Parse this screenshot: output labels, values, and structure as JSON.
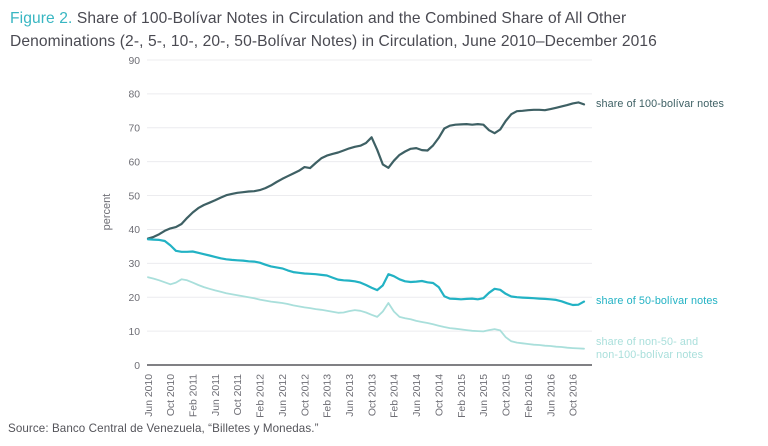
{
  "title": {
    "figure_label": "Figure 2.",
    "line1": " Share of 100-Bolívar Notes in Circulation and the Combined Share of All Other",
    "line2": "Denominations (2-, 5-, 10-, 20-, 50-Bolívar Notes) in Circulation, June 2010–December 2016"
  },
  "source": "Source: Banco Central de Venezuela, “Billetes y Monedas.”",
  "colors": {
    "accent_teal": "#38b6c2",
    "title_text": "#4a4a52",
    "tick_text": "#6e6e75",
    "gridline": "#ececef",
    "axis_line": "#56565c",
    "source_text": "#54545a",
    "series_100_bolivar": "#3e6064",
    "series_50_bolivar": "#22b2c4",
    "series_other": "#a9dfdb"
  },
  "chart_data": {
    "type": "line",
    "title": "Share of 100-Bolívar Notes in Circulation and the Combined Share of All Other Denominations (2-, 5-, 10-, 20-, 50-Bolívar Notes) in Circulation, June 2010–December 2016",
    "xlabel": "",
    "ylabel": "percent",
    "ylim": [
      0,
      90
    ],
    "y_ticks": [
      0,
      10,
      20,
      30,
      40,
      50,
      60,
      70,
      80,
      90
    ],
    "grid": true,
    "x_interval": "monthly",
    "x_start": "Jun 2010",
    "x_end": "Dec 2016",
    "x_tick_labels": [
      "Jun 2010",
      "Oct 2010",
      "Feb 2011",
      "Jun 2011",
      "Oct 2011",
      "Feb 2012",
      "Jun 2012",
      "Oct 2012",
      "Feb 2013",
      "Jun 2013",
      "Oct 2013",
      "Feb 2014",
      "Jun 2014",
      "Oct 2014",
      "Feb 2015",
      "Jun 2015",
      "Oct 2015",
      "Feb 2016",
      "Jun 2016",
      "Oct 2016"
    ],
    "x_tick_month_indices": [
      0,
      4,
      8,
      12,
      16,
      20,
      24,
      28,
      32,
      36,
      40,
      44,
      48,
      52,
      56,
      60,
      64,
      68,
      72,
      76
    ],
    "legend_position": "right-of-line-ends",
    "series": [
      {
        "id": "100-bolivar",
        "label": "share of 100-bolívar notes",
        "color": "#3e6064",
        "values": [
          37.3,
          37.8,
          38.6,
          39.6,
          40.3,
          40.7,
          41.6,
          43.4,
          45.0,
          46.3,
          47.2,
          47.9,
          48.6,
          49.4,
          50.1,
          50.5,
          50.8,
          51.0,
          51.2,
          51.3,
          51.6,
          52.2,
          53.0,
          54.0,
          54.9,
          55.7,
          56.5,
          57.3,
          58.4,
          58.1,
          59.6,
          61.0,
          61.8,
          62.3,
          62.7,
          63.3,
          63.9,
          64.4,
          64.7,
          65.5,
          67.2,
          63.5,
          59.2,
          58.2,
          60.3,
          62.0,
          63.0,
          63.8,
          64.0,
          63.4,
          63.3,
          64.8,
          67.0,
          69.8,
          70.6,
          70.9,
          71.0,
          71.1,
          70.9,
          71.1,
          70.9,
          69.3,
          68.4,
          69.5,
          72.0,
          74.0,
          74.9,
          75.0,
          75.2,
          75.3,
          75.3,
          75.2,
          75.5,
          75.9,
          76.3,
          76.7,
          77.2,
          77.5,
          76.9
        ]
      },
      {
        "id": "50-bolivar",
        "label": "share of 50-bolívar notes",
        "color": "#22b2c4",
        "values": [
          37.1,
          37.0,
          36.9,
          36.6,
          35.3,
          33.7,
          33.4,
          33.4,
          33.5,
          33.1,
          32.7,
          32.3,
          31.9,
          31.5,
          31.2,
          31.0,
          30.9,
          30.8,
          30.6,
          30.5,
          30.2,
          29.6,
          29.1,
          28.8,
          28.5,
          27.9,
          27.4,
          27.2,
          27.0,
          26.9,
          26.8,
          26.6,
          26.4,
          25.8,
          25.2,
          25.0,
          24.9,
          24.7,
          24.3,
          23.6,
          22.8,
          22.1,
          23.5,
          26.8,
          26.2,
          25.3,
          24.7,
          24.5,
          24.6,
          24.8,
          24.4,
          24.2,
          23.0,
          20.3,
          19.6,
          19.5,
          19.4,
          19.5,
          19.6,
          19.4,
          19.7,
          21.3,
          22.5,
          22.2,
          21.0,
          20.2,
          20.0,
          19.9,
          19.8,
          19.7,
          19.6,
          19.5,
          19.4,
          19.2,
          18.8,
          18.2,
          17.7,
          17.8,
          18.7
        ]
      },
      {
        "id": "other",
        "label": "share of non-50- and non-100-bolívar notes",
        "label_line1": "share of non-50- and",
        "label_line2": "non-100-bolívar notes",
        "color": "#a9dfdb",
        "values": [
          25.9,
          25.5,
          25.0,
          24.4,
          23.8,
          24.3,
          25.3,
          25.0,
          24.3,
          23.6,
          23.0,
          22.5,
          22.0,
          21.6,
          21.2,
          20.9,
          20.6,
          20.3,
          20.0,
          19.7,
          19.3,
          19.0,
          18.7,
          18.5,
          18.3,
          18.0,
          17.6,
          17.3,
          17.0,
          16.8,
          16.5,
          16.3,
          16.0,
          15.7,
          15.4,
          15.5,
          15.9,
          16.2,
          16.0,
          15.5,
          14.8,
          14.2,
          15.8,
          18.3,
          15.8,
          14.2,
          13.8,
          13.5,
          13.0,
          12.7,
          12.4,
          12.0,
          11.6,
          11.2,
          10.9,
          10.7,
          10.5,
          10.3,
          10.1,
          10.0,
          9.9,
          10.3,
          10.6,
          10.2,
          8.2,
          7.0,
          6.6,
          6.4,
          6.2,
          6.0,
          5.9,
          5.7,
          5.6,
          5.4,
          5.3,
          5.1,
          5.0,
          4.9,
          4.8
        ]
      }
    ]
  }
}
